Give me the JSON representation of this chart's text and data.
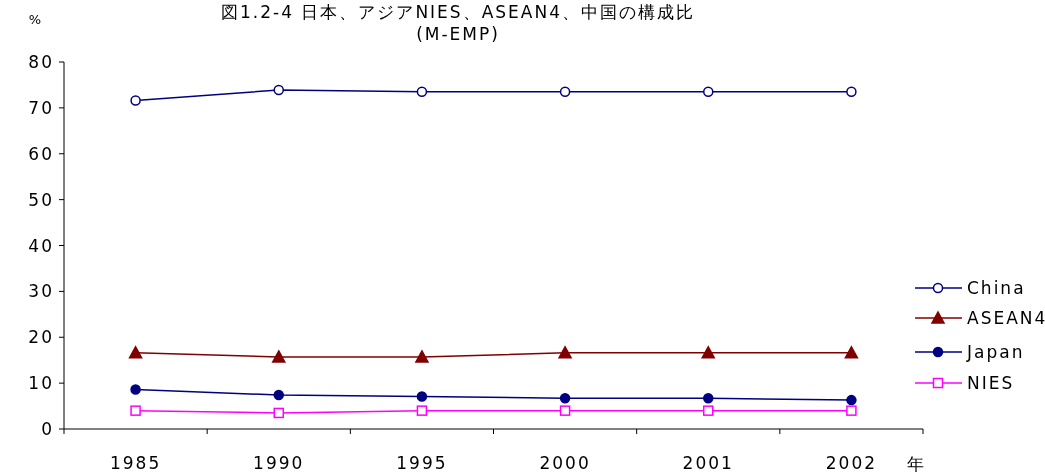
{
  "chart_data": {
    "type": "line",
    "title": "図1.2-4 日本、アジアNIES、ASEAN4、中国の構成比",
    "subtitle": "(M-EMP)",
    "xlabel": "年",
    "ylabel": "%",
    "categories": [
      "1985",
      "1990",
      "1995",
      "2000",
      "2001",
      "2002"
    ],
    "series": [
      {
        "name": "China",
        "color": "#000080",
        "marker": "circle-open",
        "values": [
          71.6,
          73.9,
          73.5,
          73.5,
          73.5,
          73.5
        ]
      },
      {
        "name": "ASEAN4",
        "color": "#800000",
        "marker": "triangle",
        "values": [
          16.6,
          15.7,
          15.7,
          16.6,
          16.6,
          16.6
        ]
      },
      {
        "name": "Japan",
        "color": "#000080",
        "marker": "circle",
        "values": [
          8.6,
          7.4,
          7.1,
          6.7,
          6.7,
          6.3
        ]
      },
      {
        "name": "NIES",
        "color": "#ff00ff",
        "marker": "square-open",
        "values": [
          4.0,
          3.5,
          4.0,
          4.0,
          4.0,
          4.0
        ]
      }
    ],
    "ylim": [
      0,
      80
    ],
    "yticks": [
      0,
      10,
      20,
      30,
      40,
      50,
      60,
      70,
      80
    ],
    "grid": false,
    "legend": "right",
    "line_style": "solid"
  }
}
